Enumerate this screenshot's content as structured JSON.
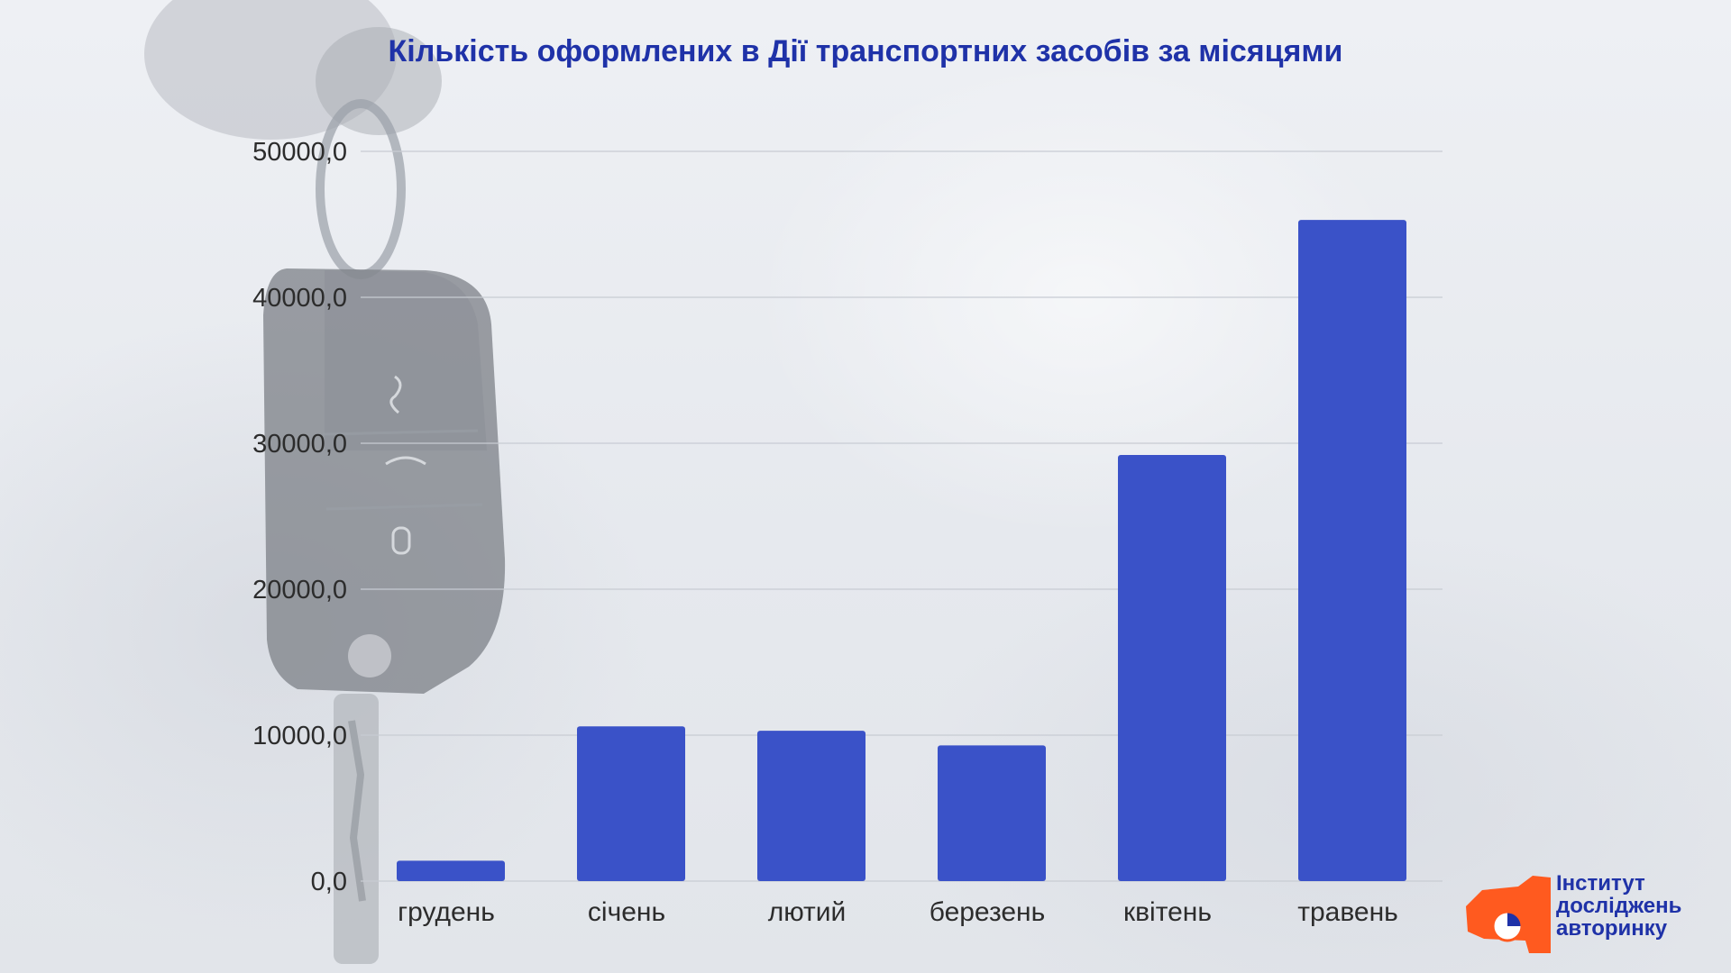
{
  "chart_data": {
    "type": "bar",
    "title": "Кількість оформлених в Дії транспортних засобів за місяцями",
    "categories": [
      "грудень",
      "січень",
      "лютий",
      "березень",
      "квітень",
      "травень"
    ],
    "values": [
      1400,
      10600,
      10300,
      9300,
      29200,
      45300
    ],
    "ylim": [
      0,
      50000
    ],
    "yticks": [
      0,
      10000,
      20000,
      30000,
      40000,
      50000
    ],
    "ytick_labels": [
      "0,0",
      "10000,0",
      "20000,0",
      "30000,0",
      "40000,0",
      "50000,0"
    ],
    "grid": true,
    "bar_color": "#3a52c8",
    "xlabel": "",
    "ylabel": ""
  },
  "logo": {
    "line1": "Інститут",
    "line2": "досліджень",
    "line3": "авторинку",
    "accent_color": "#ff5a1f",
    "text_color": "#1f32a8"
  }
}
